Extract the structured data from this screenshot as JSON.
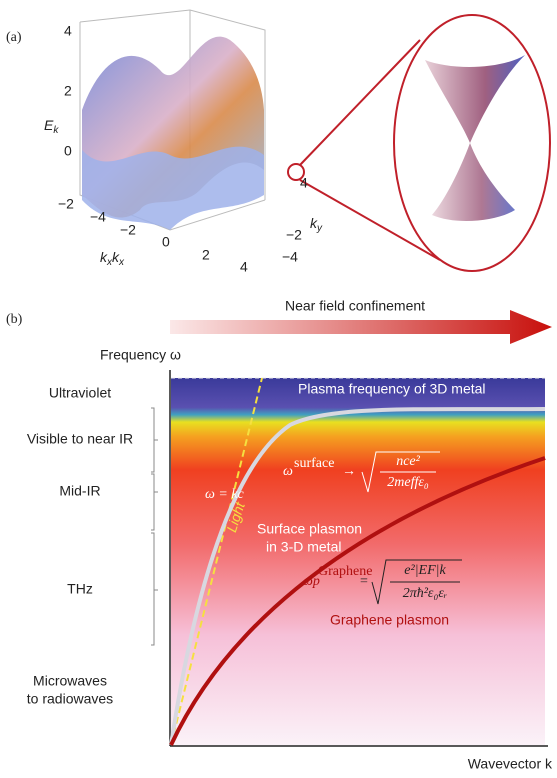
{
  "panel_a": {
    "label": "(a)",
    "z_label": {
      "main": "E",
      "sub": "k"
    },
    "z_ticks": [
      "4",
      "2",
      "0",
      "−2"
    ],
    "x_ticks": [
      "−4",
      "−2",
      "0",
      "2",
      "4"
    ],
    "x_label": [
      {
        "main": "k",
        "sub": "x"
      },
      {
        "main": "k",
        "sub": "x"
      }
    ],
    "y_ticks": [
      "4",
      "−2",
      "−4"
    ],
    "y_label": {
      "main": "k",
      "sub": "y"
    }
  },
  "panel_b": {
    "label": "(b)",
    "arrow_label": "Near field confinement",
    "y_axis_label": "Frequency ω",
    "x_axis_label": "Wavevector k",
    "bands": [
      "Ultraviolet",
      "Visible to near IR",
      "Mid-IR",
      "THz"
    ],
    "bottom_band": [
      "Microwaves",
      "to radiowaves"
    ],
    "plasma_label": "Plasma frequency of 3D metal",
    "light_eq": "ω = kc",
    "light_label": "Light",
    "surface_label": [
      "Surface plasmon",
      "in 3-D metal"
    ],
    "graphene_label": "Graphene plasmon",
    "surface_formula": {
      "symbol": "ω",
      "sup": "surface",
      "arrow": "→",
      "numerator": "nce²",
      "denominator": "2meffε₀"
    },
    "graphene_formula": {
      "symbol": "ωp",
      "sup": "Graphene",
      "eq": "=",
      "numerator": "e²|EF|k",
      "denominator": "2πħ²ε₀εᵣ"
    }
  }
}
